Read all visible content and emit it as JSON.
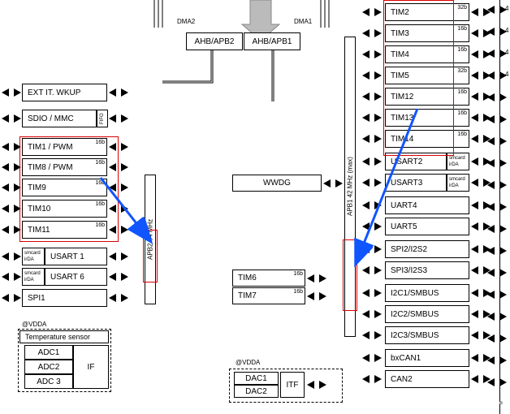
{
  "top_labels": {
    "dma2": "DMA2",
    "dma1": "DMA1"
  },
  "top_bridges": {
    "ahb_apb2": "AHB/APB2",
    "ahb_apb1": "AHB/APB1"
  },
  "apb2_bus": "APB2 84 MHz",
  "apb1_bus": "APB1 42  MHz (max)",
  "left_col": [
    {
      "label": "EXT IT. WKUP"
    },
    {
      "label": "SDIO / MMC",
      "side": "FIFO"
    },
    {
      "label": "TIM1 / PWM",
      "sup": "16b"
    },
    {
      "label": "TIM8 / PWM",
      "sup": "16b"
    },
    {
      "label": "TIM9",
      "sup": "16b"
    },
    {
      "label": "TIM10",
      "sup": "16b"
    },
    {
      "label": "TIM11",
      "sup": "16b"
    },
    {
      "label": "USART 1",
      "side": "smcard irDA"
    },
    {
      "label": "USART 6",
      "side": "smcard irDA"
    },
    {
      "label": "SPI1"
    }
  ],
  "left_vdda": "@VDDA",
  "temp_sensor": "Temperature sensor",
  "adcs": [
    "ADC1",
    "ADC2",
    "ADC 3"
  ],
  "adc_if": "IF",
  "center_col": [
    {
      "label": "WWDG"
    },
    {
      "label": "TIM6",
      "sup": "16b"
    },
    {
      "label": "TIM7",
      "sup": "16b"
    }
  ],
  "center_vdda": "@VDDA",
  "dacs": [
    "DAC1",
    "DAC2"
  ],
  "dac_if": "ITF",
  "right_col": [
    {
      "label": "TIM2",
      "sup": "32b"
    },
    {
      "label": "TIM3",
      "sup": "16b"
    },
    {
      "label": "TIM4",
      "sup": "16b"
    },
    {
      "label": "TIM5",
      "sup": "32b"
    },
    {
      "label": "TIM12",
      "sup": "16b"
    },
    {
      "label": "TIM13",
      "sup": "16b"
    },
    {
      "label": "TIM14",
      "sup": "16b"
    },
    {
      "label": "USART2",
      "side": "smcard irDA"
    },
    {
      "label": "USART3",
      "side": "smcard irDA"
    },
    {
      "label": "UART4"
    },
    {
      "label": "UART5"
    },
    {
      "label": "SPI2/I2S2"
    },
    {
      "label": "SPI3/I2S3"
    },
    {
      "label": "I2C1/SMBUS"
    },
    {
      "label": "I2C2/SMBUS"
    },
    {
      "label": "I2C3/SMBUS"
    },
    {
      "label": "bxCAN1"
    },
    {
      "label": "CAN2"
    }
  ],
  "right_far_num": "4"
}
